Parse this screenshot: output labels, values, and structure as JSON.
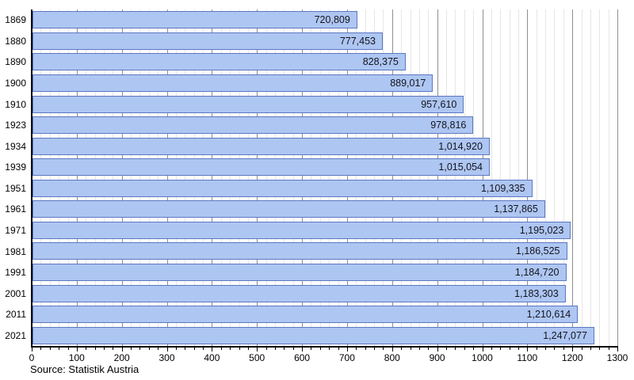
{
  "chart_data": {
    "type": "bar",
    "orientation": "horizontal",
    "title": "",
    "xlabel": "",
    "ylabel": "",
    "categories": [
      "1869",
      "1880",
      "1890",
      "1900",
      "1910",
      "1923",
      "1934",
      "1939",
      "1951",
      "1961",
      "1971",
      "1981",
      "1991",
      "2001",
      "2011",
      "2021"
    ],
    "values": [
      720809,
      777453,
      828375,
      889017,
      957610,
      978816,
      1014920,
      1015054,
      1109335,
      1137865,
      1195023,
      1186525,
      1184720,
      1183303,
      1210614,
      1247077
    ],
    "value_labels": [
      "720,809",
      "777,453",
      "828,375",
      "889,017",
      "957,610",
      "978,816",
      "1,014,920",
      "1,015,054",
      "1,109,335",
      "1,137,865",
      "1,195,023",
      "1,186,525",
      "1,184,720",
      "1,183,303",
      "1,210,614",
      "1,247,077"
    ],
    "xlim": [
      0,
      1300000
    ],
    "x_axis_unit": "thousands",
    "x_major_tick_labels": [
      "0",
      "100",
      "200",
      "300",
      "400",
      "500",
      "600",
      "700",
      "800",
      "900",
      "1000",
      "1100",
      "1200",
      "1300"
    ],
    "x_major_tick_step": 100000,
    "x_minor_tick_step": 20000,
    "grid": "vertical, minor light gray, major dark gray",
    "legend": "none",
    "colors": {
      "bar_fill": "#aec6f2",
      "bar_border": "#5c77c0",
      "value_text": "#14141e",
      "minor_grid": "#e6e6e6",
      "major_grid": "#8f8f8f",
      "axis": "#000000"
    }
  },
  "footer": {
    "source": "Source: Statistik Austria"
  }
}
